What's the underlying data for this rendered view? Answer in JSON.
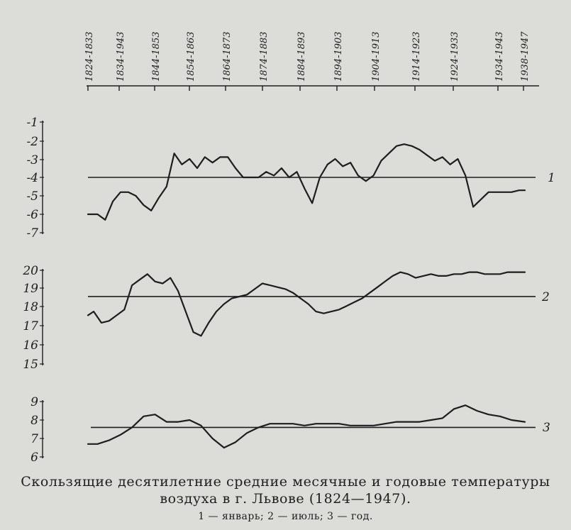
{
  "caption": {
    "line1": "Скользящие десятилетние средние месячные и годовые температуры",
    "line2": "воздуха в г. Львове (1824—1947).",
    "legend": "1 — январь; 2 — июль; 3 — год."
  },
  "chart_data": {
    "type": "line",
    "x_label": "",
    "x_ticks": [
      "1824-1833",
      "1834-1943",
      "1844-1853",
      "1854-1863",
      "1864-1873",
      "1874-1883",
      "1884-1893",
      "1894-1903",
      "1904-1913",
      "1914-1923",
      "1924-1933",
      "1934-1943",
      "1938-1947"
    ],
    "x_range": [
      1828.5,
      1942.5
    ],
    "panels": [
      {
        "series_label": "1",
        "y_ticks": [
          "-1",
          "-2",
          "-3",
          "-4",
          "-5",
          "-6",
          "-7"
        ],
        "y_range": [
          -7,
          -1
        ],
        "reference": -4.0,
        "x": [
          1828.5,
          1831,
          1833,
          1835,
          1837,
          1839,
          1841,
          1843,
          1845,
          1847,
          1849,
          1851,
          1853,
          1855,
          1857,
          1859,
          1861,
          1863,
          1865,
          1867,
          1869,
          1871,
          1873,
          1875,
          1877,
          1879,
          1881,
          1883,
          1885,
          1887,
          1889,
          1891,
          1893,
          1895,
          1897,
          1899,
          1901,
          1903,
          1905,
          1907,
          1909,
          1911,
          1913,
          1915,
          1917,
          1919,
          1921,
          1923,
          1925,
          1927,
          1929,
          1931,
          1933,
          1935,
          1937,
          1939,
          1941,
          1942.5
        ],
        "values": [
          -6.0,
          -6.0,
          -6.3,
          -5.3,
          -4.8,
          -4.8,
          -5.0,
          -5.5,
          -5.8,
          -5.1,
          -4.5,
          -2.7,
          -3.3,
          -3.0,
          -3.5,
          -2.9,
          -3.2,
          -2.9,
          -2.9,
          -3.5,
          -4.0,
          -4.0,
          -4.0,
          -3.7,
          -3.9,
          -3.5,
          -4.0,
          -3.7,
          -4.6,
          -5.4,
          -4.0,
          -3.3,
          -3.0,
          -3.4,
          -3.2,
          -3.9,
          -4.2,
          -3.9,
          -3.1,
          -2.7,
          -2.3,
          -2.2,
          -2.3,
          -2.5,
          -2.8,
          -3.1,
          -2.9,
          -3.3,
          -3.0,
          -3.9,
          -5.6,
          -5.2,
          -4.8,
          -4.8,
          -4.8,
          -4.8,
          -4.7,
          -4.7
        ]
      },
      {
        "series_label": "2",
        "y_ticks": [
          "20",
          "19",
          "18",
          "17",
          "16",
          "15"
        ],
        "y_range": [
          15,
          20
        ],
        "reference": 18.6,
        "x": [
          1828.5,
          1830,
          1832,
          1834,
          1836,
          1838,
          1840,
          1842,
          1844,
          1846,
          1848,
          1850,
          1852,
          1854,
          1856,
          1858,
          1860,
          1862,
          1864,
          1866,
          1868,
          1870,
          1872,
          1874,
          1876,
          1878,
          1880,
          1882,
          1884,
          1886,
          1888,
          1890,
          1892,
          1894,
          1896,
          1898,
          1900,
          1902,
          1904,
          1906,
          1908,
          1910,
          1912,
          1914,
          1916,
          1918,
          1920,
          1922,
          1924,
          1926,
          1928,
          1930,
          1932,
          1934,
          1936,
          1938,
          1940,
          1942.5
        ],
        "values": [
          17.6,
          17.8,
          17.2,
          17.3,
          17.6,
          17.9,
          19.2,
          19.5,
          19.8,
          19.4,
          19.3,
          19.6,
          18.9,
          17.8,
          16.7,
          16.5,
          17.2,
          17.8,
          18.2,
          18.5,
          18.6,
          18.7,
          19.0,
          19.3,
          19.2,
          19.1,
          19.0,
          18.8,
          18.5,
          18.2,
          17.8,
          17.7,
          17.8,
          17.9,
          18.1,
          18.3,
          18.5,
          18.8,
          19.1,
          19.4,
          19.7,
          19.9,
          19.8,
          19.6,
          19.7,
          19.8,
          19.7,
          19.7,
          19.8,
          19.8,
          19.9,
          19.9,
          19.8,
          19.8,
          19.8,
          19.9,
          19.9,
          19.9
        ]
      },
      {
        "series_label": "3",
        "y_ticks": [
          "9",
          "8",
          "7",
          "6"
        ],
        "y_range": [
          6,
          9
        ],
        "reference": 7.6,
        "x": [
          1828.5,
          1831,
          1834,
          1837,
          1840,
          1843,
          1846,
          1849,
          1852,
          1855,
          1858,
          1861,
          1864,
          1867,
          1870,
          1873,
          1876,
          1879,
          1882,
          1885,
          1888,
          1891,
          1894,
          1897,
          1900,
          1903,
          1906,
          1909,
          1912,
          1915,
          1918,
          1921,
          1924,
          1927,
          1930,
          1933,
          1936,
          1939,
          1942.5
        ],
        "values": [
          6.7,
          6.7,
          6.9,
          7.2,
          7.6,
          8.2,
          8.3,
          7.9,
          7.9,
          8.0,
          7.7,
          7.0,
          6.5,
          6.8,
          7.3,
          7.6,
          7.8,
          7.8,
          7.8,
          7.7,
          7.8,
          7.8,
          7.8,
          7.7,
          7.7,
          7.7,
          7.8,
          7.9,
          7.9,
          7.9,
          8.0,
          8.1,
          8.6,
          8.8,
          8.5,
          8.3,
          8.2,
          8.0,
          7.9
        ]
      }
    ]
  }
}
